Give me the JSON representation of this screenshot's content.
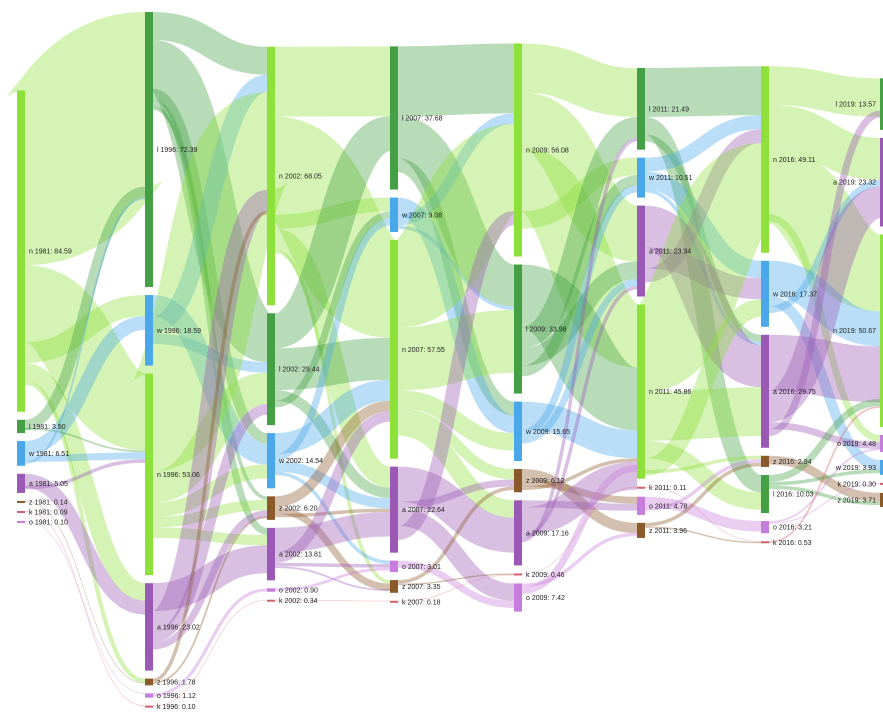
{
  "colors": {
    "n": "#8ee03a",
    "l": "#45a045",
    "w": "#4aa8ea",
    "a": "#9b59b6",
    "z": "#8b5a2b",
    "k": "#d0606a",
    "o": "#c77ddb"
  },
  "years": [
    "1981",
    "1996",
    "2002",
    "2007",
    "2009",
    "2011",
    "2016",
    "2019"
  ],
  "columns": [
    {
      "year": "1981",
      "nodes": [
        {
          "id": "n1981",
          "party": "n",
          "label": "n 1981: 84.59",
          "value": 84.59
        },
        {
          "id": "l1981",
          "party": "l",
          "label": "l 1981: 3.50",
          "value": 3.5
        },
        {
          "id": "w1981",
          "party": "w",
          "label": "w 1981: 6.51",
          "value": 6.51
        },
        {
          "id": "a1981",
          "party": "a",
          "label": "a 1981: 5.05",
          "value": 5.05
        },
        {
          "id": "z1981",
          "party": "z",
          "label": "z 1981: 0.14",
          "value": 0.14
        },
        {
          "id": "k1981",
          "party": "k",
          "label": "k 1981: 0.09",
          "value": 0.09
        },
        {
          "id": "o1981",
          "party": "o",
          "label": "o 1981: 0.10",
          "value": 0.1
        }
      ]
    },
    {
      "year": "1996",
      "nodes": [
        {
          "id": "l1996",
          "party": "l",
          "label": "l 1996: 72.39",
          "value": 72.39
        },
        {
          "id": "w1996",
          "party": "w",
          "label": "w 1996: 18.59",
          "value": 18.59
        },
        {
          "id": "n1996",
          "party": "n",
          "label": "n 1996: 53.06",
          "value": 53.06
        },
        {
          "id": "a1996",
          "party": "a",
          "label": "a 1996: 23.02",
          "value": 23.02
        },
        {
          "id": "z1996",
          "party": "z",
          "label": "z 1996: 1.78",
          "value": 1.78
        },
        {
          "id": "o1996",
          "party": "o",
          "label": "o 1996: 1.12",
          "value": 1.12
        },
        {
          "id": "k1996",
          "party": "k",
          "label": "k 1996: 0.10",
          "value": 0.1
        }
      ]
    },
    {
      "year": "2002",
      "nodes": [
        {
          "id": "n2002",
          "party": "n",
          "label": "n 2002: 68.05",
          "value": 68.05
        },
        {
          "id": "l2002",
          "party": "l",
          "label": "l 2002: 29.44",
          "value": 29.44
        },
        {
          "id": "w2002",
          "party": "w",
          "label": "w 2002: 14.54",
          "value": 14.54
        },
        {
          "id": "z2002",
          "party": "z",
          "label": "z 2002: 6.20",
          "value": 6.2
        },
        {
          "id": "a2002",
          "party": "a",
          "label": "a 2002: 13.81",
          "value": 13.81
        },
        {
          "id": "o2002",
          "party": "o",
          "label": "o 2002: 0.90",
          "value": 0.9
        },
        {
          "id": "k2002",
          "party": "k",
          "label": "k 2002: 0.34",
          "value": 0.34
        }
      ]
    },
    {
      "year": "2007",
      "nodes": [
        {
          "id": "l2007",
          "party": "l",
          "label": "l 2007: 37.68",
          "value": 37.68
        },
        {
          "id": "w2007",
          "party": "w",
          "label": "w 2007: 9.08",
          "value": 9.08
        },
        {
          "id": "n2007",
          "party": "n",
          "label": "n 2007: 57.55",
          "value": 57.55
        },
        {
          "id": "a2007",
          "party": "a",
          "label": "a 2007: 22.64",
          "value": 22.64
        },
        {
          "id": "o2007",
          "party": "o",
          "label": "o 2007: 3.01",
          "value": 3.01
        },
        {
          "id": "z2007",
          "party": "z",
          "label": "z 2007: 3.35",
          "value": 3.35
        },
        {
          "id": "k2007",
          "party": "k",
          "label": "k 2007: 0.18",
          "value": 0.18
        }
      ]
    },
    {
      "year": "2009",
      "nodes": [
        {
          "id": "n2009",
          "party": "n",
          "label": "n 2009: 56.08",
          "value": 56.08
        },
        {
          "id": "l2009",
          "party": "l",
          "label": "l 2009: 33.98",
          "value": 33.98
        },
        {
          "id": "w2009",
          "party": "w",
          "label": "w 2009: 15.65",
          "value": 15.65
        },
        {
          "id": "z2009",
          "party": "z",
          "label": "z 2009: 6.12",
          "value": 6.12
        },
        {
          "id": "a2009",
          "party": "a",
          "label": "a 2009: 17.16",
          "value": 17.16
        },
        {
          "id": "k2009",
          "party": "k",
          "label": "k 2009: 0.46",
          "value": 0.46
        },
        {
          "id": "o2009",
          "party": "o",
          "label": "o 2009: 7.42",
          "value": 7.42
        }
      ]
    },
    {
      "year": "2011",
      "nodes": [
        {
          "id": "l2011",
          "party": "l",
          "label": "l 2011: 21.49",
          "value": 21.49
        },
        {
          "id": "w2011",
          "party": "w",
          "label": "w 2011: 10.51",
          "value": 10.51
        },
        {
          "id": "a2011",
          "party": "a",
          "label": "a 2011: 23.94",
          "value": 23.94
        },
        {
          "id": "n2011",
          "party": "n",
          "label": "n 2011: 45.86",
          "value": 45.86
        },
        {
          "id": "k2011",
          "party": "k",
          "label": "k 2011: 0.11",
          "value": 0.11
        },
        {
          "id": "o2011",
          "party": "o",
          "label": "o 2011: 4.78",
          "value": 4.78
        },
        {
          "id": "z2011",
          "party": "z",
          "label": "z 2011: 3.96",
          "value": 3.96
        }
      ]
    },
    {
      "year": "2016",
      "nodes": [
        {
          "id": "n2016",
          "party": "n",
          "label": "n 2016: 49.11",
          "value": 49.11
        },
        {
          "id": "w2016",
          "party": "w",
          "label": "w 2016: 17.37",
          "value": 17.37
        },
        {
          "id": "a2016",
          "party": "a",
          "label": "a 2016: 29.75",
          "value": 29.75
        },
        {
          "id": "z2016",
          "party": "z",
          "label": "z 2016: 2.94",
          "value": 2.94
        },
        {
          "id": "l2016",
          "party": "l",
          "label": "l 2016: 10.03",
          "value": 10.03
        },
        {
          "id": "o2016",
          "party": "o",
          "label": "o 2016: 3.21",
          "value": 3.21
        },
        {
          "id": "k2016",
          "party": "k",
          "label": "k 2016: 0.53",
          "value": 0.53
        }
      ]
    },
    {
      "year": "2019",
      "nodes": [
        {
          "id": "l2019",
          "party": "l",
          "label": "l 2019: 13.57",
          "value": 13.57
        },
        {
          "id": "a2019",
          "party": "a",
          "label": "a 2019: 23.32",
          "value": 23.32
        },
        {
          "id": "n2019",
          "party": "n",
          "label": "n 2019: 50.67",
          "value": 50.67
        },
        {
          "id": "o2019",
          "party": "o",
          "label": "o 2019: 4.48",
          "value": 4.48
        },
        {
          "id": "w2019",
          "party": "w",
          "label": "w 2019: 3.93",
          "value": 3.93
        },
        {
          "id": "k2019",
          "party": "k",
          "label": "k 2019: 0.30",
          "value": 0.3
        },
        {
          "id": "z2019",
          "party": "z",
          "label": "z 2019: 3.71",
          "value": 3.71
        }
      ]
    }
  ],
  "links": [
    [
      "n1981",
      "l1996",
      50
    ],
    [
      "n1981",
      "n1996",
      22
    ],
    [
      "n1981",
      "w1996",
      6
    ],
    [
      "n1981",
      "a1996",
      5
    ],
    [
      "n1981",
      "z1996",
      1.2
    ],
    [
      "l1981",
      "l1996",
      3
    ],
    [
      "l1981",
      "n1996",
      0.5
    ],
    [
      "w1981",
      "w1996",
      4
    ],
    [
      "w1981",
      "n1996",
      2
    ],
    [
      "w1981",
      "l1996",
      0.5
    ],
    [
      "a1981",
      "a1996",
      4
    ],
    [
      "a1981",
      "n1996",
      1
    ],
    [
      "z1981",
      "z1996",
      0.14
    ],
    [
      "k1981",
      "k1996",
      0.09
    ],
    [
      "o1981",
      "o1996",
      0.1
    ],
    [
      "l1996",
      "n2002",
      8
    ],
    [
      "l1996",
      "l2002",
      14
    ],
    [
      "l1996",
      "w2002",
      3
    ],
    [
      "l1996",
      "a2002",
      2
    ],
    [
      "l1996",
      "z2002",
      1
    ],
    [
      "w1996",
      "w2002",
      6
    ],
    [
      "w1996",
      "n2002",
      5
    ],
    [
      "w1996",
      "l2002",
      3
    ],
    [
      "n1996",
      "n2002",
      28
    ],
    [
      "n1996",
      "l2002",
      9
    ],
    [
      "n1996",
      "w2002",
      4
    ],
    [
      "n1996",
      "z2002",
      3
    ],
    [
      "n1996",
      "a2002",
      3
    ],
    [
      "a1996",
      "a2002",
      8
    ],
    [
      "a1996",
      "n2002",
      6
    ],
    [
      "a1996",
      "l2002",
      3
    ],
    [
      "a1996",
      "z2002",
      2
    ],
    [
      "z1996",
      "n2002",
      1
    ],
    [
      "z1996",
      "z2002",
      0.5
    ],
    [
      "o1996",
      "o2002",
      0.9
    ],
    [
      "k1996",
      "k2002",
      0.1
    ],
    [
      "n2002",
      "l2007",
      20
    ],
    [
      "n2002",
      "n2007",
      28
    ],
    [
      "n2002",
      "w2007",
      4
    ],
    [
      "n2002",
      "a2007",
      6
    ],
    [
      "n2002",
      "z2007",
      1
    ],
    [
      "l2002",
      "l2007",
      10
    ],
    [
      "l2002",
      "n2007",
      12
    ],
    [
      "l2002",
      "a2007",
      3
    ],
    [
      "l2002",
      "w2007",
      2
    ],
    [
      "w2002",
      "n2007",
      6
    ],
    [
      "w2002",
      "w2007",
      2
    ],
    [
      "w2002",
      "a2007",
      3
    ],
    [
      "w2002",
      "o2007",
      1
    ],
    [
      "z2002",
      "n2007",
      3
    ],
    [
      "z2002",
      "z2007",
      2
    ],
    [
      "z2002",
      "a2007",
      1
    ],
    [
      "a2002",
      "a2007",
      7
    ],
    [
      "a2002",
      "n2007",
      3
    ],
    [
      "a2002",
      "o2007",
      1
    ],
    [
      "a2002",
      "z2007",
      0.5
    ],
    [
      "o2002",
      "o2007",
      0.8
    ],
    [
      "k2002",
      "k2007",
      0.18
    ],
    [
      "l2007",
      "n2009",
      20
    ],
    [
      "l2007",
      "l2009",
      12
    ],
    [
      "l2007",
      "w2009",
      4
    ],
    [
      "w2007",
      "w2009",
      5
    ],
    [
      "w2007",
      "n2009",
      3
    ],
    [
      "w2007",
      "l2009",
      1
    ],
    [
      "n2007",
      "n2009",
      25
    ],
    [
      "n2007",
      "l2009",
      18
    ],
    [
      "n2007",
      "w2009",
      5
    ],
    [
      "n2007",
      "z2009",
      3
    ],
    [
      "n2007",
      "a2009",
      5
    ],
    [
      "a2007",
      "a2009",
      10
    ],
    [
      "a2007",
      "z2009",
      2
    ],
    [
      "a2007",
      "o2009",
      5
    ],
    [
      "a2007",
      "n2009",
      4
    ],
    [
      "o2007",
      "o2009",
      2
    ],
    [
      "z2007",
      "z2009",
      1
    ],
    [
      "z2007",
      "k2009",
      0.4
    ],
    [
      "k2007",
      "k2009",
      0.06
    ],
    [
      "n2009",
      "l2011",
      14
    ],
    [
      "n2009",
      "a2011",
      16
    ],
    [
      "n2009",
      "n2011",
      18
    ],
    [
      "n2009",
      "w2011",
      5
    ],
    [
      "l2009",
      "n2011",
      18
    ],
    [
      "l2009",
      "l2011",
      6
    ],
    [
      "l2009",
      "a2011",
      5
    ],
    [
      "l2009",
      "w2011",
      3
    ],
    [
      "w2009",
      "n2011",
      8
    ],
    [
      "w2009",
      "w2011",
      2
    ],
    [
      "w2009",
      "a2011",
      2
    ],
    [
      "z2009",
      "z2011",
      3
    ],
    [
      "z2009",
      "o2011",
      2
    ],
    [
      "z2009",
      "n2011",
      1
    ],
    [
      "a2009",
      "o2011",
      2
    ],
    [
      "a2009",
      "n2011",
      8
    ],
    [
      "a2009",
      "a2011",
      1
    ],
    [
      "a2009",
      "l2011",
      1
    ],
    [
      "k2009",
      "k2011",
      0.11
    ],
    [
      "o2009",
      "z2011",
      1
    ],
    [
      "o2009",
      "n2011",
      2
    ],
    [
      "l2011",
      "n2016",
      14
    ],
    [
      "l2011",
      "l2016",
      5
    ],
    [
      "l2011",
      "a2016",
      2
    ],
    [
      "w2011",
      "n2016",
      4
    ],
    [
      "w2011",
      "w2016",
      5
    ],
    [
      "w2011",
      "a2016",
      1
    ],
    [
      "a2011",
      "a2016",
      12
    ],
    [
      "a2011",
      "w2016",
      6
    ],
    [
      "a2011",
      "n2016",
      4
    ],
    [
      "n2011",
      "n2016",
      25
    ],
    [
      "n2011",
      "a2016",
      14
    ],
    [
      "n2011",
      "l2016",
      5
    ],
    [
      "n2011",
      "w2016",
      5
    ],
    [
      "n2011",
      "z2016",
      1
    ],
    [
      "k2011",
      "k2016",
      0.11
    ],
    [
      "o2011",
      "o2016",
      3
    ],
    [
      "o2011",
      "z2016",
      1
    ],
    [
      "z2011",
      "z2016",
      1
    ],
    [
      "z2011",
      "k2016",
      0.4
    ],
    [
      "n2016",
      "l2019",
      11
    ],
    [
      "n2016",
      "a2019",
      12
    ],
    [
      "n2016",
      "n2019",
      22
    ],
    [
      "n2016",
      "o2019",
      2
    ],
    [
      "w2016",
      "n2019",
      10
    ],
    [
      "w2016",
      "w2019",
      3
    ],
    [
      "w2016",
      "a2019",
      2
    ],
    [
      "a2016",
      "n2019",
      16
    ],
    [
      "a2016",
      "a2019",
      9
    ],
    [
      "a2016",
      "o2019",
      2
    ],
    [
      "a2016",
      "l2019",
      2
    ],
    [
      "z2016",
      "z2019",
      2.5
    ],
    [
      "l2016",
      "n2019",
      2
    ],
    [
      "l2016",
      "w2019",
      1
    ],
    [
      "l2016",
      "z2019",
      1
    ],
    [
      "o2016",
      "o2019",
      0.5
    ],
    [
      "o2016",
      "k2019",
      0.3
    ],
    [
      "k2016",
      "n2019",
      0.5
    ]
  ]
}
